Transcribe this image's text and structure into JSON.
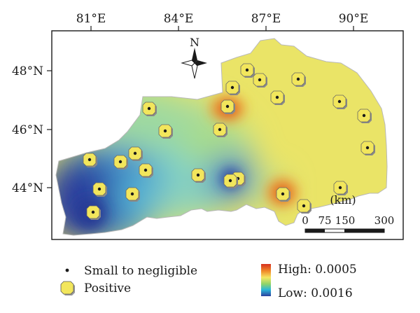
{
  "axes": {
    "x_ticks": [
      "81°E",
      "84°E",
      "87°E",
      "90°E"
    ],
    "y_ticks": [
      "48°N",
      "46°N",
      "44°N"
    ]
  },
  "north_arrow": {
    "label": "N"
  },
  "scale_bar": {
    "unit": "(km)",
    "ticks": [
      "0",
      "75",
      "150",
      "300"
    ]
  },
  "legend": {
    "small_label": "Small to negligible",
    "positive_label": "Positive",
    "high_label": "High: 0.0005",
    "low_label": "Low: 0.0016"
  },
  "colors": {
    "high": "#d7301f",
    "mid": "#f5e663",
    "low": "#2c3f9f",
    "marker_fill": "#f2e65c",
    "outline": "#1a1a1a"
  }
}
